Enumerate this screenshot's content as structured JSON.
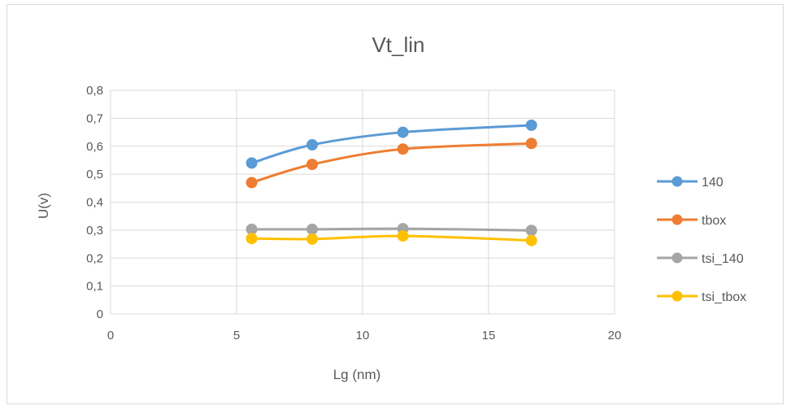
{
  "chart_data": {
    "type": "scatter",
    "title": "Vt_lin",
    "xlabel": "Lg (nm)",
    "ylabel": "U(v)",
    "xlim": [
      0,
      20
    ],
    "ylim": [
      0,
      0.8
    ],
    "x_ticks": [
      0,
      5,
      10,
      15,
      20
    ],
    "y_ticks": [
      0,
      0.1,
      0.2,
      0.3,
      0.4,
      0.5,
      0.6,
      0.7,
      0.8
    ],
    "x_tick_labels": [
      "0",
      "5",
      "10",
      "15",
      "20"
    ],
    "y_tick_labels": [
      "0",
      "0,1",
      "0,2",
      "0,3",
      "0,4",
      "0,5",
      "0,6",
      "0,7",
      "0,8"
    ],
    "grid": true,
    "smooth_lines": true,
    "legend_position": "right",
    "series": [
      {
        "name": "140",
        "color": "#5b9bd5",
        "x": [
          5.6,
          8.0,
          11.6,
          16.7
        ],
        "y": [
          0.54,
          0.605,
          0.65,
          0.675
        ]
      },
      {
        "name": "tbox",
        "color": "#ed7d31",
        "x": [
          5.6,
          8.0,
          11.6,
          16.7
        ],
        "y": [
          0.47,
          0.535,
          0.59,
          0.61
        ]
      },
      {
        "name": "tsi_140",
        "color": "#a5a5a5",
        "x": [
          5.6,
          8.0,
          11.6,
          16.7
        ],
        "y": [
          0.303,
          0.303,
          0.305,
          0.299
        ]
      },
      {
        "name": "tsi_tbox",
        "color": "#ffc000",
        "x": [
          5.6,
          8.0,
          11.6,
          16.7
        ],
        "y": [
          0.27,
          0.268,
          0.279,
          0.263
        ]
      }
    ]
  }
}
